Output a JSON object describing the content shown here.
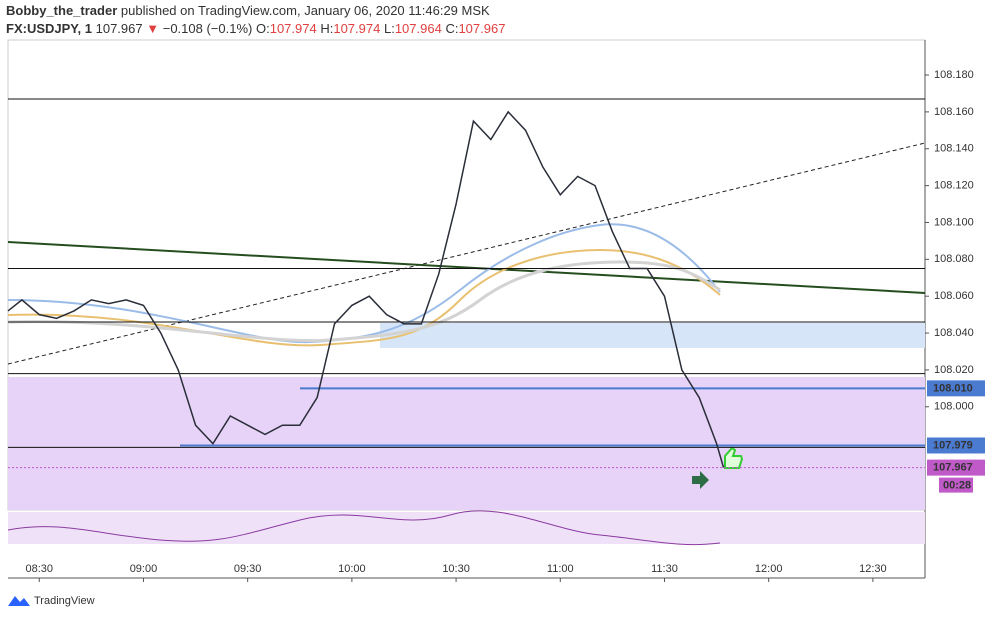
{
  "header": {
    "publisher": "Bobby_the_trader",
    "published": "published on TradingView.com, January 06, 2020 11:46:29 MSK",
    "symbol": "FX:USDJPY, 1",
    "last": "107.967",
    "change": "−0.108 (−0.1%)",
    "open_label": "O:",
    "open": "107.974",
    "high_label": "H:",
    "high": "107.974",
    "low_label": "L:",
    "low": "107.964",
    "close_label": "C:",
    "close": "107.967"
  },
  "chart_data": {
    "type": "line",
    "color": "#2a2e39",
    "x": [
      "08:21",
      "08:25",
      "08:30",
      "08:35",
      "08:40",
      "08:45",
      "08:50",
      "08:55",
      "09:00",
      "09:05",
      "09:10",
      "09:15",
      "09:20",
      "09:25",
      "09:30",
      "09:35",
      "09:40",
      "09:45",
      "09:50",
      "09:55",
      "10:00",
      "10:05",
      "10:10",
      "10:15",
      "10:20",
      "10:25",
      "10:30",
      "10:35",
      "10:40",
      "10:45",
      "10:50",
      "10:55",
      "11:00",
      "11:05",
      "11:10",
      "11:15",
      "11:20",
      "11:25",
      "11:30",
      "11:35",
      "11:40",
      "11:45",
      "11:47"
    ],
    "values": [
      108.052,
      108.058,
      108.05,
      108.048,
      108.052,
      108.058,
      108.056,
      108.058,
      108.055,
      108.04,
      108.02,
      107.99,
      107.98,
      107.995,
      107.99,
      107.985,
      107.99,
      107.99,
      108.005,
      108.045,
      108.055,
      108.06,
      108.05,
      108.045,
      108.045,
      108.072,
      108.11,
      108.155,
      108.145,
      108.16,
      108.15,
      108.13,
      108.115,
      108.125,
      108.12,
      108.095,
      108.075,
      108.075,
      108.06,
      108.02,
      108.005,
      107.98,
      107.967
    ],
    "xlim": [
      "08:21",
      "12:45"
    ],
    "xticks": [
      "08:30",
      "09:00",
      "09:30",
      "10:00",
      "10:30",
      "11:00",
      "11:30",
      "12:00",
      "12:30"
    ],
    "ylim": [
      107.944,
      108.199
    ],
    "yticks": [
      {
        "value": 108.18,
        "label": "108.180"
      },
      {
        "value": 108.16,
        "label": "108.160"
      },
      {
        "value": 108.14,
        "label": "108.140"
      },
      {
        "value": 108.12,
        "label": "108.120"
      },
      {
        "value": 108.1,
        "label": "108.100"
      },
      {
        "value": 108.08,
        "label": "108.080"
      },
      {
        "value": 108.06,
        "label": "108.060"
      },
      {
        "value": 108.04,
        "label": "108.040"
      },
      {
        "value": 108.02,
        "label": "108.020"
      },
      {
        "value": 108.0,
        "label": "108.000"
      }
    ],
    "levels": [
      108.167,
      108.075,
      108.046,
      108.018,
      107.978
    ],
    "price_marks": [
      {
        "value": 108.01,
        "label": "108.010",
        "color": "#4a7bd0"
      },
      {
        "value": 107.979,
        "label": "107.979",
        "color": "#4a7bd0"
      },
      {
        "value": 107.967,
        "label": "107.967",
        "color": "#c05ac8"
      }
    ],
    "countdown": "00:28",
    "brand": "TradingView"
  }
}
